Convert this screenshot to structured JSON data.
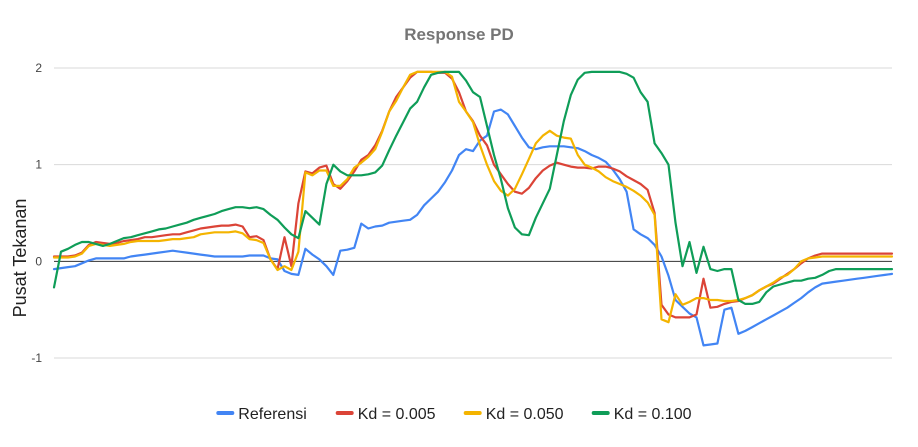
{
  "chart_data": {
    "type": "line",
    "title": "Response PD",
    "xlabel": "",
    "ylabel": "Pusat Tekanan",
    "ylim": [
      -1,
      2
    ],
    "yticks": [
      "-1",
      "0",
      "1",
      "2"
    ],
    "grid": true,
    "legend_position": "bottom",
    "x": [
      0,
      1,
      2,
      3,
      4,
      5,
      6,
      7,
      8,
      9,
      10,
      11,
      12,
      13,
      14,
      15,
      16,
      17,
      18,
      19,
      20,
      21,
      22,
      23,
      24,
      25,
      26,
      27,
      28,
      29,
      30,
      31,
      32,
      33,
      34,
      35,
      36,
      37,
      38,
      39,
      40,
      41,
      42,
      43,
      44,
      45,
      46,
      47,
      48,
      49,
      50,
      51,
      52,
      53,
      54,
      55,
      56,
      57,
      58,
      59,
      60,
      61,
      62,
      63,
      64,
      65,
      66,
      67,
      68,
      69,
      70,
      71,
      72,
      73,
      74,
      75,
      76,
      77,
      78,
      79,
      80,
      81,
      82,
      83,
      84,
      85,
      86,
      87,
      88,
      89,
      90,
      91,
      92,
      93,
      94,
      95,
      96,
      97,
      98,
      99,
      100,
      101,
      102,
      103,
      104,
      105,
      106,
      107,
      108,
      109,
      110,
      111,
      112,
      113,
      114,
      115,
      116,
      117,
      118,
      119,
      120
    ],
    "series": [
      {
        "name": "Referensi",
        "color": "#4285f4",
        "values": [
          -0.08,
          -0.07,
          -0.06,
          -0.05,
          -0.02,
          0.01,
          0.03,
          0.03,
          0.03,
          0.03,
          0.03,
          0.05,
          0.06,
          0.07,
          0.08,
          0.09,
          0.1,
          0.11,
          0.1,
          0.09,
          0.08,
          0.07,
          0.06,
          0.05,
          0.05,
          0.05,
          0.05,
          0.05,
          0.06,
          0.06,
          0.06,
          0.03,
          0.02,
          -0.1,
          -0.13,
          -0.14,
          0.13,
          0.07,
          0.02,
          -0.05,
          -0.14,
          0.11,
          0.12,
          0.14,
          0.39,
          0.34,
          0.36,
          0.37,
          0.4,
          0.41,
          0.42,
          0.43,
          0.48,
          0.58,
          0.65,
          0.72,
          0.82,
          0.94,
          1.1,
          1.16,
          1.14,
          1.25,
          1.3,
          1.55,
          1.57,
          1.52,
          1.4,
          1.28,
          1.18,
          1.16,
          1.18,
          1.19,
          1.19,
          1.19,
          1.18,
          1.17,
          1.14,
          1.1,
          1.07,
          1.03,
          0.95,
          0.85,
          0.72,
          0.33,
          0.28,
          0.24,
          0.17,
          0.05,
          -0.15,
          -0.4,
          -0.47,
          -0.54,
          -0.58,
          -0.87,
          -0.86,
          -0.85,
          -0.5,
          -0.48,
          -0.75,
          -0.72,
          -0.68,
          -0.64,
          -0.6,
          -0.56,
          -0.52,
          -0.48,
          -0.43,
          -0.38,
          -0.32,
          -0.27,
          -0.23,
          -0.22,
          -0.21,
          -0.2,
          -0.19,
          -0.18,
          -0.17,
          -0.16,
          -0.15,
          -0.14,
          -0.13
        ]
      },
      {
        "name": "Kd = 0.005",
        "color": "#db4437",
        "values": [
          0.05,
          0.05,
          0.05,
          0.06,
          0.09,
          0.17,
          0.2,
          0.19,
          0.18,
          0.19,
          0.21,
          0.22,
          0.23,
          0.25,
          0.25,
          0.26,
          0.27,
          0.28,
          0.28,
          0.3,
          0.32,
          0.34,
          0.35,
          0.36,
          0.37,
          0.37,
          0.38,
          0.36,
          0.25,
          0.26,
          0.22,
          0.02,
          -0.08,
          0.25,
          -0.05,
          0.6,
          0.93,
          0.91,
          0.97,
          0.99,
          0.8,
          0.75,
          0.83,
          0.93,
          1.05,
          1.1,
          1.2,
          1.35,
          1.55,
          1.7,
          1.8,
          1.9,
          1.96,
          1.96,
          1.96,
          1.95,
          1.95,
          1.89,
          1.75,
          1.55,
          1.45,
          1.3,
          1.2,
          1.0,
          0.9,
          0.8,
          0.72,
          0.7,
          0.76,
          0.86,
          0.94,
          0.99,
          1.02,
          1.0,
          0.98,
          0.97,
          0.97,
          0.96,
          0.98,
          0.98,
          0.96,
          0.93,
          0.88,
          0.84,
          0.8,
          0.74,
          0.5,
          -0.45,
          -0.55,
          -0.58,
          -0.58,
          -0.58,
          -0.55,
          -0.18,
          -0.48,
          -0.47,
          -0.44,
          -0.42,
          -0.41,
          -0.38,
          -0.35,
          -0.3,
          -0.26,
          -0.23,
          -0.18,
          -0.13,
          -0.08,
          -0.02,
          0.03,
          0.06,
          0.08,
          0.08,
          0.08,
          0.08,
          0.08,
          0.08,
          0.08,
          0.08,
          0.08,
          0.08,
          0.08
        ]
      },
      {
        "name": "Kd = 0.050",
        "color": "#f4b400",
        "values": [
          0.04,
          0.04,
          0.04,
          0.05,
          0.08,
          0.16,
          0.18,
          0.17,
          0.16,
          0.17,
          0.18,
          0.2,
          0.21,
          0.21,
          0.21,
          0.21,
          0.22,
          0.23,
          0.23,
          0.24,
          0.25,
          0.28,
          0.29,
          0.3,
          0.3,
          0.3,
          0.31,
          0.29,
          0.23,
          0.22,
          0.19,
          0.02,
          -0.09,
          -0.05,
          -0.09,
          0.1,
          0.92,
          0.89,
          0.94,
          0.94,
          0.78,
          0.78,
          0.85,
          0.97,
          1.02,
          1.08,
          1.16,
          1.34,
          1.55,
          1.66,
          1.8,
          1.93,
          1.96,
          1.96,
          1.96,
          1.96,
          1.96,
          1.91,
          1.65,
          1.55,
          1.44,
          1.2,
          1.0,
          0.83,
          0.73,
          0.68,
          0.75,
          0.9,
          1.06,
          1.22,
          1.3,
          1.35,
          1.3,
          1.28,
          1.27,
          1.1,
          1.0,
          0.97,
          0.93,
          0.87,
          0.83,
          0.8,
          0.77,
          0.73,
          0.68,
          0.61,
          0.48,
          -0.6,
          -0.63,
          -0.34,
          -0.45,
          -0.42,
          -0.38,
          -0.38,
          -0.4,
          -0.4,
          -0.41,
          -0.41,
          -0.4,
          -0.38,
          -0.35,
          -0.3,
          -0.26,
          -0.22,
          -0.17,
          -0.14,
          -0.08,
          0.0,
          0.03,
          0.04,
          0.05,
          0.05,
          0.05,
          0.05,
          0.05,
          0.05,
          0.05,
          0.05,
          0.05,
          0.05,
          0.05
        ]
      },
      {
        "name": "Kd = 0.100",
        "color": "#0f9d58",
        "values": [
          -0.27,
          0.1,
          0.13,
          0.17,
          0.2,
          0.2,
          0.18,
          0.16,
          0.18,
          0.21,
          0.24,
          0.25,
          0.27,
          0.29,
          0.31,
          0.33,
          0.34,
          0.36,
          0.38,
          0.4,
          0.43,
          0.45,
          0.47,
          0.49,
          0.52,
          0.54,
          0.56,
          0.56,
          0.55,
          0.56,
          0.54,
          0.48,
          0.43,
          0.35,
          0.28,
          0.24,
          0.52,
          0.45,
          0.38,
          0.8,
          1.0,
          0.93,
          0.89,
          0.89,
          0.89,
          0.9,
          0.92,
          0.99,
          1.15,
          1.3,
          1.44,
          1.58,
          1.65,
          1.8,
          1.93,
          1.95,
          1.96,
          1.96,
          1.96,
          1.87,
          1.75,
          1.7,
          1.4,
          1.1,
          0.85,
          0.55,
          0.35,
          0.28,
          0.27,
          0.45,
          0.6,
          0.75,
          1.1,
          1.45,
          1.72,
          1.88,
          1.95,
          1.96,
          1.96,
          1.96,
          1.96,
          1.96,
          1.94,
          1.9,
          1.75,
          1.65,
          1.22,
          1.12,
          1.0,
          0.4,
          -0.05,
          0.2,
          -0.12,
          0.15,
          -0.08,
          -0.1,
          -0.08,
          -0.08,
          -0.4,
          -0.44,
          -0.44,
          -0.42,
          -0.32,
          -0.26,
          -0.24,
          -0.22,
          -0.2,
          -0.2,
          -0.18,
          -0.17,
          -0.14,
          -0.1,
          -0.08,
          -0.08,
          -0.08,
          -0.08,
          -0.08,
          -0.08,
          -0.08,
          -0.08,
          -0.08
        ]
      }
    ]
  }
}
